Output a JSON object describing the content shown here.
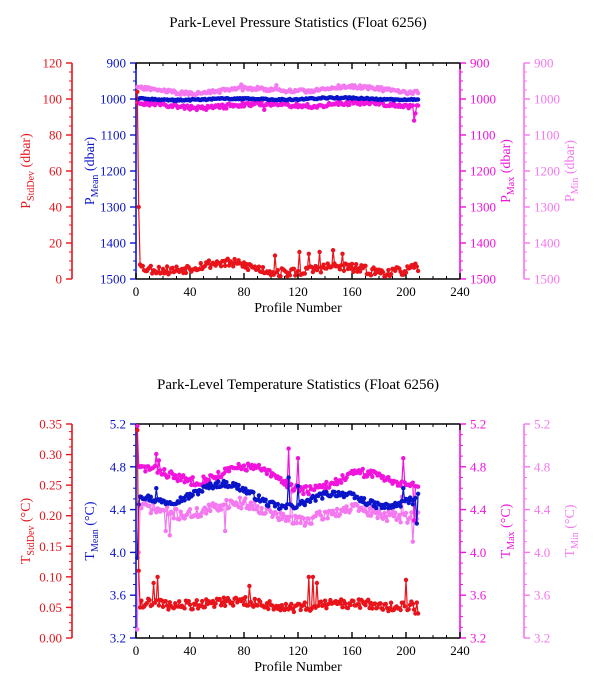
{
  "colors": {
    "red": "#e8141b",
    "blue": "#0a14c8",
    "magenta": "#f014dc",
    "pink": "#f478f0",
    "black": "#000000"
  },
  "chart_data": [
    {
      "type": "line",
      "title": "Park-Level Pressure Statistics (Float 6256)",
      "xlabel": "Profile Number",
      "xlim": [
        0,
        240
      ],
      "xticks": [
        "0",
        "40",
        "80",
        "120",
        "160",
        "200",
        "240"
      ],
      "axes": [
        {
          "id": "std",
          "label_main": "P",
          "label_sub": "StdDev",
          "label_unit": " (dbar)",
          "color": "red",
          "side": "left-outer",
          "ylim": [
            0,
            120
          ],
          "reversed": false,
          "ticks": [
            "0",
            "20",
            "40",
            "60",
            "80",
            "100",
            "120"
          ]
        },
        {
          "id": "mean",
          "label_main": "P",
          "label_sub": "Mean",
          "label_unit": " (dbar)",
          "color": "blue",
          "side": "left-inner",
          "ylim": [
            900,
            1500
          ],
          "reversed": true,
          "ticks": [
            "900",
            "1000",
            "1100",
            "1200",
            "1300",
            "1400",
            "1500"
          ]
        },
        {
          "id": "max",
          "label_main": "P",
          "label_sub": "Max",
          "label_unit": " (dbar)",
          "color": "magenta",
          "side": "right-inner",
          "ylim": [
            900,
            1500
          ],
          "reversed": true,
          "ticks": [
            "900",
            "1000",
            "1100",
            "1200",
            "1300",
            "1400",
            "1500"
          ]
        },
        {
          "id": "min",
          "label_main": "P",
          "label_sub": "Min",
          "label_unit": " (dbar)",
          "color": "pink",
          "side": "right-outer",
          "ylim": [
            900,
            1500
          ],
          "reversed": true,
          "ticks": [
            "900",
            "1000",
            "1100",
            "1200",
            "1300",
            "1400",
            "1500"
          ]
        }
      ],
      "series": [
        {
          "axis": "min",
          "color": "pink",
          "x_start": 1,
          "x_end": 209,
          "base": 975,
          "amp": 6,
          "noise": 5,
          "seed": 11,
          "spikes": [
            [
              78,
              960
            ],
            [
              104,
              962
            ],
            [
              150,
              962
            ],
            [
              175,
              968
            ]
          ]
        },
        {
          "axis": "max",
          "color": "magenta",
          "x_start": 1,
          "x_end": 209,
          "base": 1017,
          "amp": 5,
          "noise": 6,
          "seed": 23,
          "spikes": [
            [
              95,
              1030
            ],
            [
              206,
              1060
            ],
            [
              207,
              1040
            ]
          ]
        },
        {
          "axis": "mean",
          "color": "blue",
          "x_start": 1,
          "x_end": 209,
          "base": 1000,
          "amp": 2,
          "noise": 2,
          "seed": 37,
          "spikes": [
            [
              1,
              1000
            ]
          ]
        },
        {
          "axis": "std",
          "color": "red",
          "x_start": 1,
          "x_end": 209,
          "base": 6,
          "amp": 2,
          "noise": 2.5,
          "seed": 53,
          "spikes": [
            [
              1,
              104
            ],
            [
              2,
              40
            ],
            [
              3,
              8
            ],
            [
              103,
              13
            ],
            [
              121,
              15
            ],
            [
              128,
              14
            ],
            [
              136,
              15
            ],
            [
              146,
              16
            ],
            [
              153,
              14
            ]
          ]
        }
      ]
    },
    {
      "type": "line",
      "title": "Park-Level Temperature Statistics (Float 6256)",
      "xlabel": "Profile Number",
      "xlim": [
        0,
        240
      ],
      "xticks": [
        "0",
        "40",
        "80",
        "120",
        "160",
        "200",
        "240"
      ],
      "axes": [
        {
          "id": "std",
          "label_main": "T",
          "label_sub": "StdDev",
          "label_unit": " (°C)",
          "color": "red",
          "side": "left-outer",
          "ylim": [
            0,
            0.35
          ],
          "reversed": false,
          "ticks": [
            "0.00",
            "0.05",
            "0.10",
            "0.15",
            "0.20",
            "0.25",
            "0.30",
            "0.35"
          ]
        },
        {
          "id": "mean",
          "label_main": "T",
          "label_sub": "Mean",
          "label_unit": " (°C)",
          "color": "blue",
          "side": "left-inner",
          "ylim": [
            3.2,
            5.2
          ],
          "reversed": false,
          "ticks": [
            "3.2",
            "3.6",
            "4.0",
            "4.4",
            "4.8",
            "5.2"
          ]
        },
        {
          "id": "max",
          "label_main": "T",
          "label_sub": "Max",
          "label_unit": " (°C)",
          "color": "magenta",
          "side": "right-inner",
          "ylim": [
            3.2,
            5.2
          ],
          "reversed": false,
          "ticks": [
            "3.2",
            "3.6",
            "4.0",
            "4.4",
            "4.8",
            "5.2"
          ]
        },
        {
          "id": "min",
          "label_main": "T",
          "label_sub": "Min",
          "label_unit": " (°C)",
          "color": "pink",
          "side": "right-outer",
          "ylim": [
            3.2,
            5.2
          ],
          "reversed": false,
          "ticks": [
            "3.2",
            "3.6",
            "4.0",
            "4.4",
            "4.8",
            "5.2"
          ]
        }
      ],
      "series": [
        {
          "axis": "min",
          "color": "pink",
          "x_start": 1,
          "x_end": 209,
          "base": 4.38,
          "amp": 0.06,
          "noise": 0.05,
          "seed": 71,
          "spikes": [
            [
              1,
              3.28
            ],
            [
              2,
              4.0
            ],
            [
              22,
              4.2
            ],
            [
              25,
              4.16
            ],
            [
              66,
              4.2
            ],
            [
              115,
              4.56
            ],
            [
              150,
              4.34
            ],
            [
              190,
              4.4
            ],
            [
              197,
              4.52
            ],
            [
              205,
              4.1
            ]
          ]
        },
        {
          "axis": "max",
          "color": "magenta",
          "x_start": 1,
          "x_end": 209,
          "base": 4.7,
          "amp": 0.08,
          "noise": 0.04,
          "seed": 83,
          "spikes": [
            [
              1,
              5.18
            ],
            [
              15,
              4.92
            ],
            [
              17,
              4.86
            ],
            [
              113,
              4.97
            ],
            [
              120,
              4.88
            ],
            [
              160,
              4.76
            ],
            [
              198,
              4.88
            ],
            [
              206,
              4.3
            ]
          ]
        },
        {
          "axis": "mean",
          "color": "blue",
          "x_start": 1,
          "x_end": 209,
          "base": 4.52,
          "amp": 0.08,
          "noise": 0.03,
          "seed": 97,
          "spikes": [
            [
              1,
              3.95
            ],
            [
              2,
              4.45
            ],
            [
              15,
              4.6
            ],
            [
              113,
              4.7
            ],
            [
              120,
              4.62
            ],
            [
              198,
              4.6
            ],
            [
              205,
              4.45
            ],
            [
              208,
              4.27
            ]
          ]
        },
        {
          "axis": "std",
          "color": "red",
          "x_start": 1,
          "x_end": 209,
          "base": 0.055,
          "amp": 0.004,
          "noise": 0.008,
          "seed": 109,
          "spikes": [
            [
              1,
              0.34
            ],
            [
              2,
              0.11
            ],
            [
              3,
              0.05
            ],
            [
              13,
              0.09
            ],
            [
              16,
              0.1
            ],
            [
              84,
              0.085
            ],
            [
              128,
              0.1
            ],
            [
              131,
              0.1
            ],
            [
              134,
              0.09
            ],
            [
              200,
              0.095
            ],
            [
              207,
              0.04
            ],
            [
              209,
              0.04
            ]
          ]
        }
      ]
    }
  ]
}
